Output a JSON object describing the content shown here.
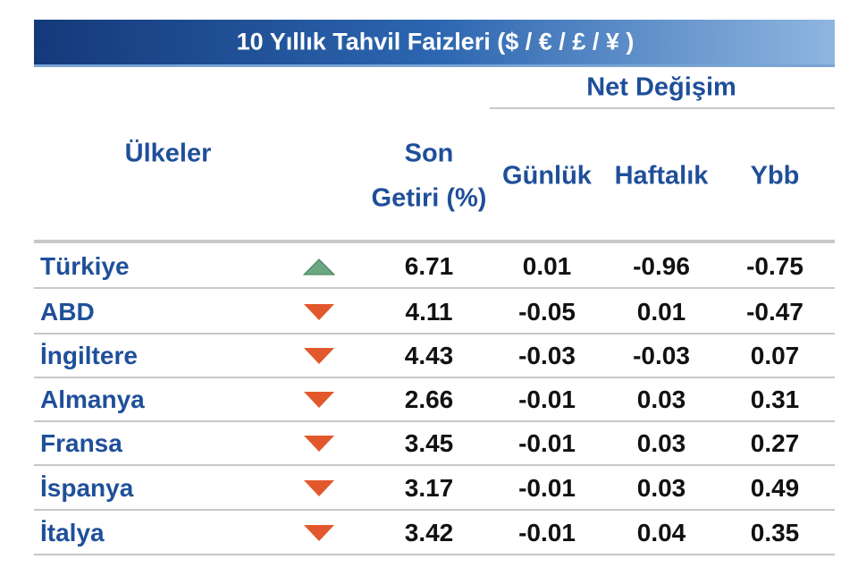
{
  "header": {
    "title": "10 Yıllık Tahvil Faizleri ($ / € / £ / ¥ )"
  },
  "table": {
    "group_header": "Net Değişim",
    "columns": {
      "country": "Ülkeler",
      "yield_line1": "Son",
      "yield_line2": "Getiri (%)",
      "daily": "Günlük",
      "weekly": "Haftalık",
      "ytd": "Ybb"
    },
    "rows": [
      {
        "country": "Türkiye",
        "trend": "up",
        "yield": "6.71",
        "daily": "0.01",
        "weekly": "-0.96",
        "ytd": "-0.75"
      },
      {
        "country": "ABD",
        "trend": "down",
        "yield": "4.11",
        "daily": "-0.05",
        "weekly": "0.01",
        "ytd": "-0.47"
      },
      {
        "country": "İngiltere",
        "trend": "down",
        "yield": "4.43",
        "daily": "-0.03",
        "weekly": "-0.03",
        "ytd": "0.07"
      },
      {
        "country": "Almanya",
        "trend": "down",
        "yield": "2.66",
        "daily": "-0.01",
        "weekly": "0.03",
        "ytd": "0.31"
      },
      {
        "country": "Fransa",
        "trend": "down",
        "yield": "3.45",
        "daily": "-0.01",
        "weekly": "0.03",
        "ytd": "0.27"
      },
      {
        "country": "İspanya",
        "trend": "down",
        "yield": "3.17",
        "daily": "-0.01",
        "weekly": "0.03",
        "ytd": "0.49"
      },
      {
        "country": "İtalya",
        "trend": "down",
        "yield": "3.42",
        "daily": "-0.01",
        "weekly": "0.04",
        "ytd": "0.35"
      }
    ]
  }
}
